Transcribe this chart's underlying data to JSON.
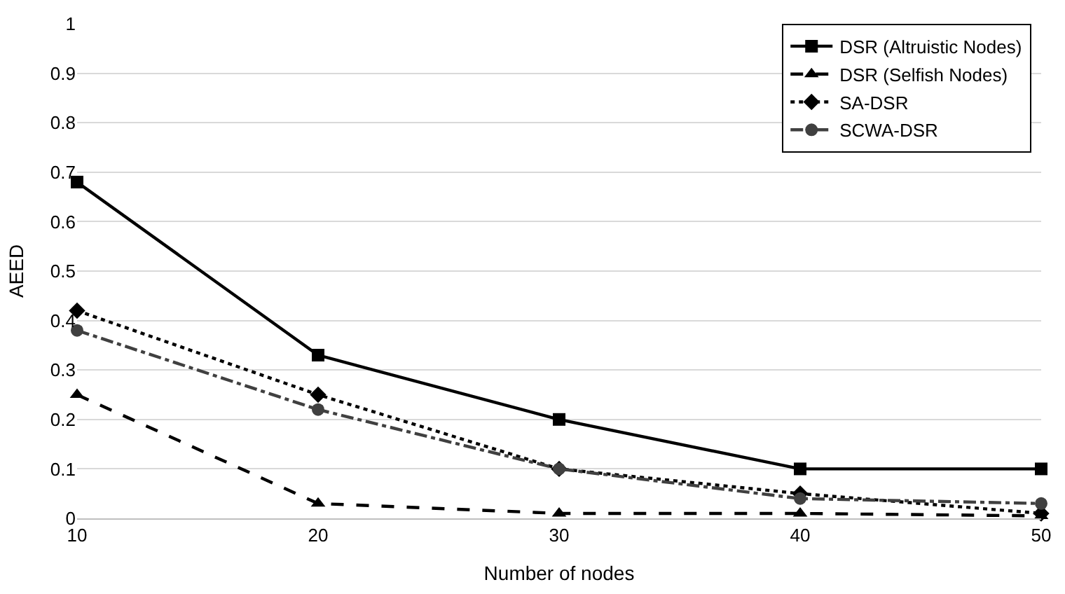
{
  "chart_data": {
    "type": "line",
    "xlabel": "Number of nodes",
    "ylabel": "AEED",
    "x": [
      10,
      20,
      30,
      40,
      50
    ],
    "xlim": [
      10,
      50
    ],
    "xticks": [
      10,
      20,
      30,
      40,
      50
    ],
    "ylim": [
      0,
      1
    ],
    "yticks": [
      0,
      0.1,
      0.2,
      0.3,
      0.4,
      0.5,
      0.6,
      0.7,
      0.8,
      0.9,
      1
    ],
    "grid": "y",
    "legend": "top right",
    "series": [
      {
        "name": "DSR (Altruistic Nodes)",
        "color": "#000000",
        "marker": "square",
        "line_style": "solid",
        "values": [
          0.68,
          0.33,
          0.2,
          0.1,
          0.1
        ]
      },
      {
        "name": "DSR (Selfish Nodes)",
        "color": "#000000",
        "marker": "triangle",
        "line_style": "dashed",
        "values": [
          0.25,
          0.03,
          0.01,
          0.01,
          0.005
        ]
      },
      {
        "name": "SA-DSR",
        "color": "#000000",
        "marker": "diamond",
        "line_style": "dotted",
        "values": [
          0.42,
          0.25,
          0.1,
          0.05,
          0.01
        ]
      },
      {
        "name": "SCWA-DSR",
        "color": "#404040",
        "marker": "circle",
        "line_style": "dashdot",
        "values": [
          0.38,
          0.22,
          0.1,
          0.04,
          0.03
        ]
      }
    ]
  }
}
